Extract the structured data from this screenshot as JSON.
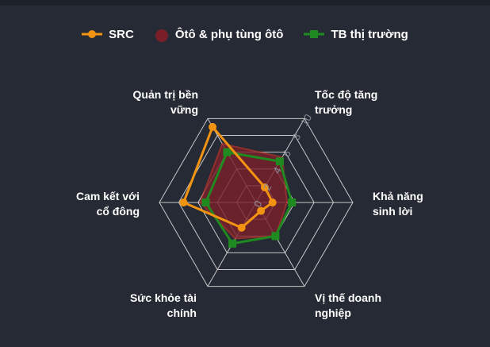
{
  "colors": {
    "background": "#252a34",
    "grid": "#c8c8c8",
    "src": "#f29411",
    "industry_fill": "#7a1f2a",
    "industry_stroke": "#c0392b",
    "market": "#1f8a1f"
  },
  "chart_data": {
    "type": "radar",
    "axes": [
      [
        "Tốc độ tăng",
        "trưởng"
      ],
      [
        "Khả năng",
        "sinh lời"
      ],
      [
        "Vị thế doanh",
        "nghiệp"
      ],
      [
        "Sức khỏe tài",
        "chính"
      ],
      [
        "Cam kết với",
        "cổ đông"
      ],
      [
        "Quản trị bền",
        "vững"
      ]
    ],
    "ticks": [
      "0",
      "2",
      "4",
      "6",
      "8",
      "10"
    ],
    "range": [
      0,
      10
    ],
    "grid": true,
    "legend_position": "top",
    "series": [
      {
        "name": "SRC",
        "values": [
          1.8,
          1.7,
          1.0,
          3.0,
          7.5,
          9.0
        ],
        "marker": "circle"
      },
      {
        "name": "Ôtô & phụ tùng ôtô",
        "values": [
          5.4,
          3.2,
          4.0,
          4.3,
          5.8,
          7.0
        ],
        "marker": "circle-filled-area"
      },
      {
        "name": "TB thị trường",
        "values": [
          4.9,
          3.7,
          4.0,
          4.9,
          5.2,
          6.0
        ],
        "marker": "square"
      }
    ]
  }
}
